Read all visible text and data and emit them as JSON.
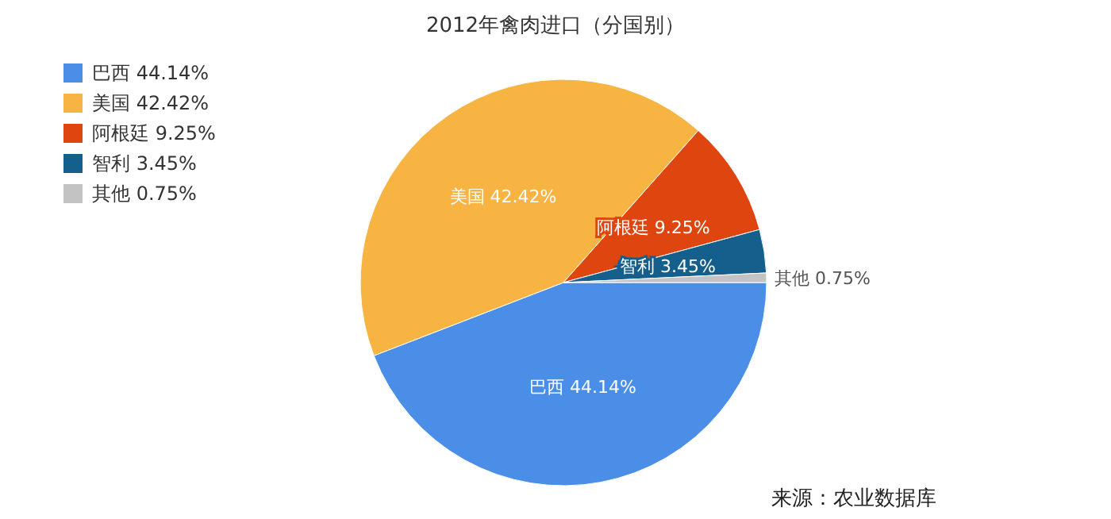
{
  "chart_data": {
    "type": "pie",
    "title": "2012年禽肉进口（分国别）",
    "categories": [
      "巴西 44.14%",
      "美国 42.42%",
      "阿根廷 9.25%",
      "智利 3.45%",
      "其他 0.75%"
    ],
    "values": [
      44.14,
      42.42,
      9.25,
      3.45,
      0.75
    ],
    "colors": [
      "#4a8ee8",
      "#f8b443",
      "#de450f",
      "#155f8c",
      "#c3c3c3"
    ],
    "value_labels": [
      "巴西 44.14%",
      "美国 42.42%",
      "阿根廷 9.25%",
      "智利 3.45%",
      "其他 0.75%"
    ],
    "legend": "top left",
    "annotations": [
      "来源：农业数据库"
    ]
  }
}
